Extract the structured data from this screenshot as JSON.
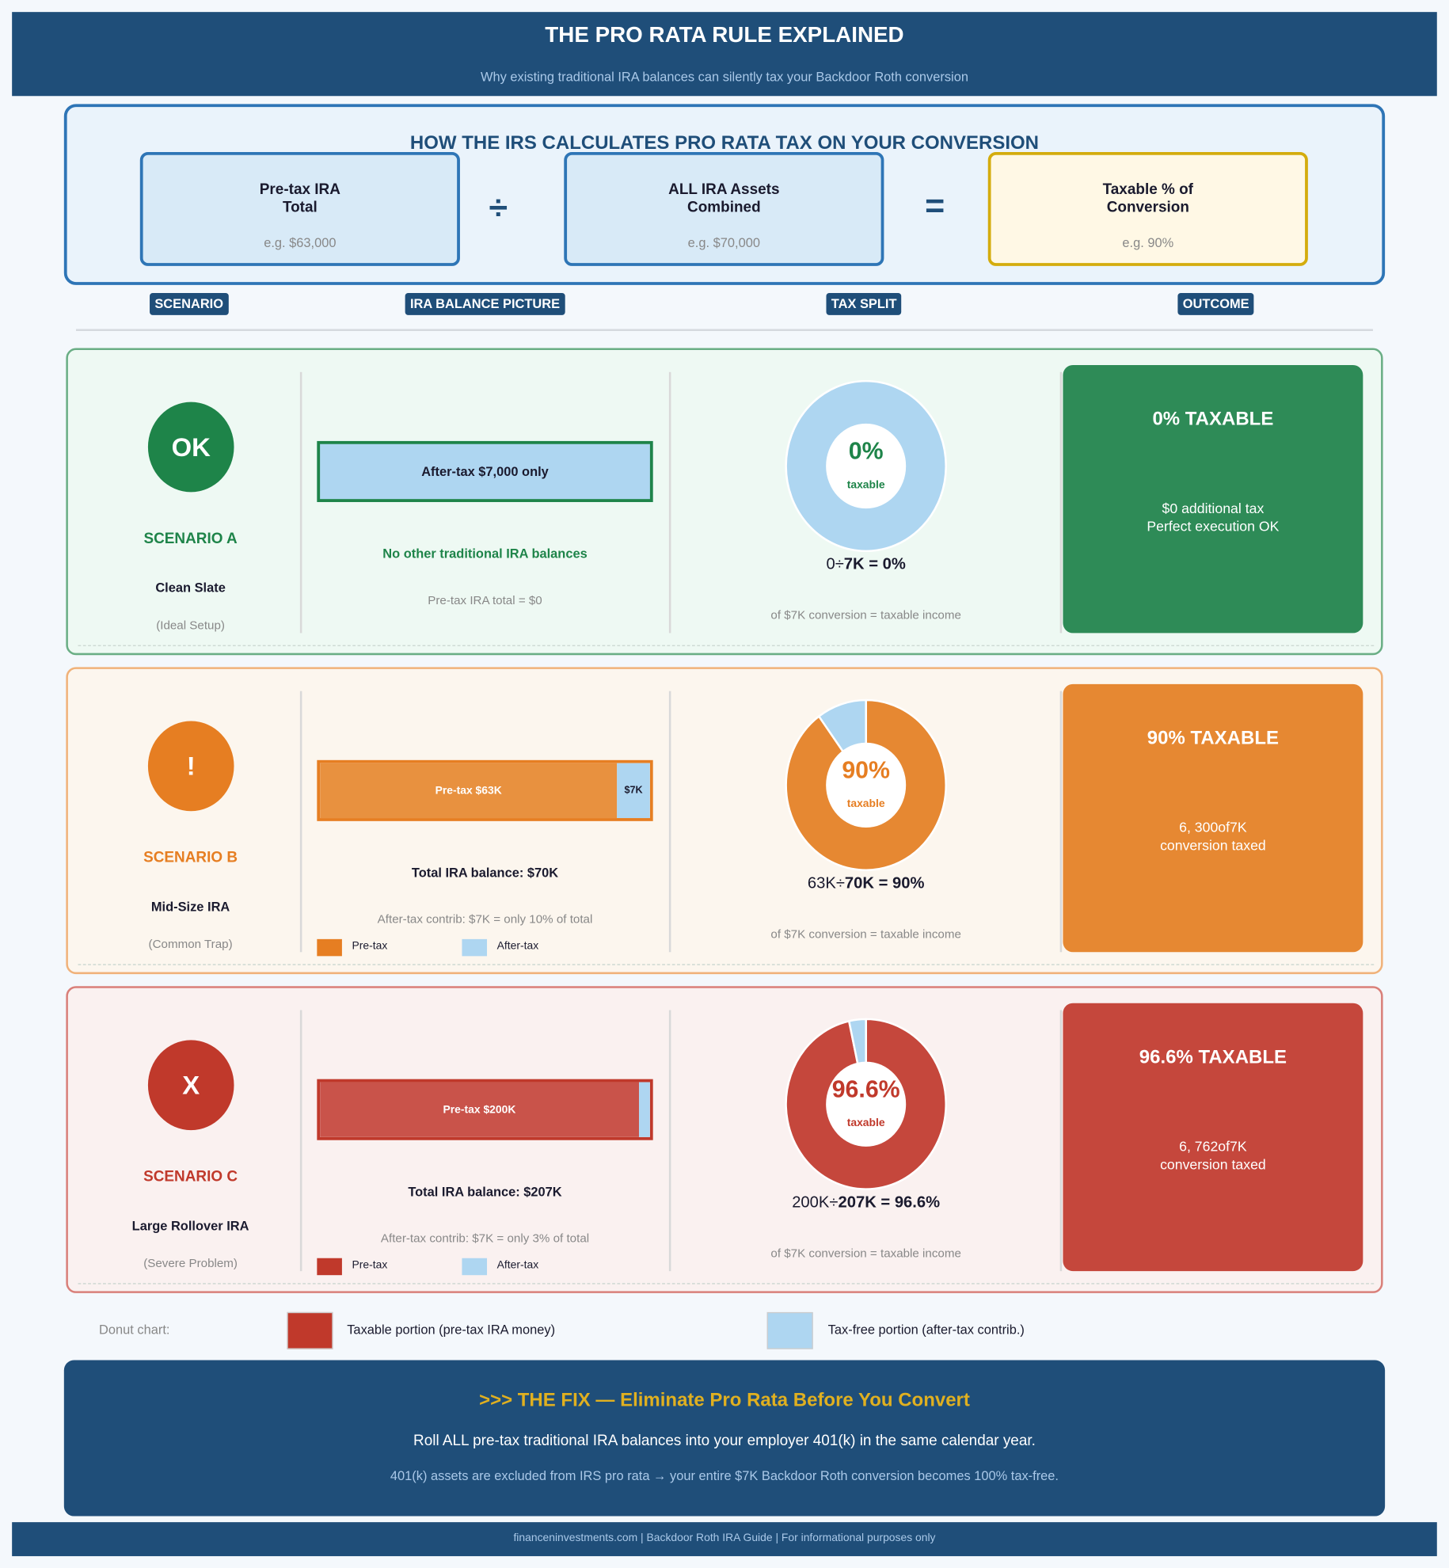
{
  "header": {
    "title": "THE PRO RATA RULE EXPLAINED",
    "subtitle": "Why existing traditional IRA balances can silently tax your Backdoor Roth conversion"
  },
  "formula": {
    "title": "HOW THE IRS CALCULATES PRO RATA TAX ON YOUR CONVERSION",
    "boxes": [
      {
        "label_1": "Pre-tax IRA",
        "label_2": "Total",
        "example": "e.g. $63,000"
      },
      {
        "label_1": "ALL IRA Assets",
        "label_2": "Combined",
        "example": "e.g. $70,000"
      },
      {
        "label_1": "Taxable % of",
        "label_2": "Conversion",
        "example": "e.g. 90%"
      }
    ],
    "divide_symbol": "÷",
    "equals_symbol": "="
  },
  "columns": [
    "SCENARIO",
    "IRA BALANCE PICTURE",
    "TAX SPLIT",
    "OUTCOME"
  ],
  "scenarios": [
    {
      "icon": "OK",
      "label": "SCENARIO A",
      "name": "Clean Slate",
      "note": "(Ideal Setup)",
      "color": "#1e8449",
      "panel_bg": "#eef9f3",
      "panel_border": "#6aae85",
      "outcome_bg": "#2e8b57",
      "pretax_k": 0,
      "aftertax_k": 7,
      "bar_aftertax_label": "After-tax $7,000 only",
      "bar_pretax_label": "",
      "bar_after_short": "",
      "headline": "No other traditional IRA balances",
      "detail": "Pre-tax IRA total = $0",
      "legend": [],
      "taxable_pct": 0,
      "donut_pct_label": "0%",
      "donut_sub": "taxable",
      "formula_pre": "0÷",
      "formula_bold": "7K = 0%",
      "formula_note": "of $7K conversion = taxable income",
      "outcome_title": "0% TAXABLE",
      "outcome_line_1": "$0 additional tax",
      "outcome_line_2": "Perfect execution OK"
    },
    {
      "icon": "!",
      "label": "SCENARIO B",
      "name": "Mid-Size IRA",
      "note": "(Common Trap)",
      "color": "#e67e22",
      "panel_bg": "#fcf6ee",
      "panel_border": "#f0b27a",
      "outcome_bg": "#e68832",
      "pretax_k": 63,
      "aftertax_k": 7,
      "bar_aftertax_label": "",
      "bar_pretax_label": "Pre-tax  $63K",
      "bar_after_short": "$7K",
      "headline": "Total IRA balance: $70K",
      "detail": "After-tax contrib: $7K = only 10% of total",
      "legend": [
        "Pre-tax",
        "After-tax"
      ],
      "taxable_pct": 90,
      "donut_pct_label": "90%",
      "donut_sub": "taxable",
      "formula_pre": "63K÷",
      "formula_bold": "70K = 90%",
      "formula_note": "of $7K conversion = taxable income",
      "outcome_title": "90% TAXABLE",
      "outcome_line_1": "6, 300of7K",
      "outcome_line_2": "conversion taxed"
    },
    {
      "icon": "X",
      "label": "SCENARIO C",
      "name": "Large Rollover IRA",
      "note": "(Severe Problem)",
      "color": "#c0392b",
      "panel_bg": "#faf1f0",
      "panel_border": "#d9807a",
      "outcome_bg": "#c5473c",
      "pretax_k": 200,
      "aftertax_k": 7,
      "bar_aftertax_label": "",
      "bar_pretax_label": "Pre-tax  $200K",
      "bar_after_short": "",
      "headline": "Total IRA balance: $207K",
      "detail": "After-tax contrib: $7K = only 3% of total",
      "legend": [
        "Pre-tax",
        "After-tax"
      ],
      "taxable_pct": 96.6,
      "donut_pct_label": "96.6%",
      "donut_sub": "taxable",
      "formula_pre": "200K÷",
      "formula_bold": "207K = 96.6%",
      "formula_note": "of $7K conversion = taxable income",
      "outcome_title": "96.6% TAXABLE",
      "outcome_line_1": "6, 762of7K",
      "outcome_line_2": "conversion taxed"
    }
  ],
  "legend": {
    "label": "Donut chart:",
    "taxable": "Taxable portion  (pre-tax IRA money)",
    "taxfree": "Tax-free portion  (after-tax contrib.)",
    "taxable_color": "#c0392b",
    "taxfree_color": "#aed6f1"
  },
  "fix": {
    "title": ">>>  THE FIX — Eliminate Pro Rata Before You Convert",
    "line_1": "Roll ALL pre-tax traditional IRA balances into your employer 401(k) in the same calendar year.",
    "line_2": "401(k) assets are excluded from IRS pro rata  →  your entire $7K Backdoor Roth conversion becomes 100% tax-free."
  },
  "footer": "financeninvestments.com  |  Backdoor Roth IRA Guide  |  For informational purposes only"
}
